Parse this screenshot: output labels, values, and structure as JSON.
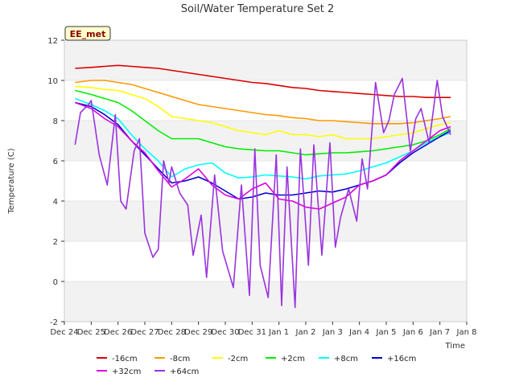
{
  "chart_data": {
    "type": "line",
    "title": "Soil/Water Temperature Set 2",
    "xlabel": "Time",
    "ylabel": "Temperature (C)",
    "station_badge": "EE_met",
    "ylim": [
      -2,
      12
    ],
    "yticks": [
      -2,
      0,
      2,
      4,
      6,
      8,
      10,
      12
    ],
    "xlim": [
      0,
      15
    ],
    "xticks": [
      {
        "x": 0,
        "label": "Dec 24"
      },
      {
        "x": 1,
        "label": "Dec 25"
      },
      {
        "x": 2,
        "label": "Dec 26"
      },
      {
        "x": 3,
        "label": "Dec 27"
      },
      {
        "x": 4,
        "label": "Dec 28"
      },
      {
        "x": 5,
        "label": "Dec 29"
      },
      {
        "x": 6,
        "label": "Dec 30"
      },
      {
        "x": 7,
        "label": "Dec 31"
      },
      {
        "x": 8,
        "label": "Jan 1"
      },
      {
        "x": 9,
        "label": "Jan 2"
      },
      {
        "x": 10,
        "label": "Jan 3"
      },
      {
        "x": 11,
        "label": "Jan 4"
      },
      {
        "x": 12,
        "label": "Jan 5"
      },
      {
        "x": 13,
        "label": "Jan 6"
      },
      {
        "x": 14,
        "label": "Jan 7"
      },
      {
        "x": 15,
        "label": "Jan 8"
      }
    ],
    "grid_bands": true,
    "legend_position": "bottom",
    "series": [
      {
        "name": "-16cm",
        "color": "#dd0000",
        "x": [
          0.4,
          1,
          1.5,
          2,
          2.5,
          3,
          3.5,
          4,
          4.5,
          5,
          5.5,
          6,
          6.5,
          7,
          7.5,
          8,
          8.5,
          9,
          9.5,
          10,
          10.5,
          11,
          11.5,
          12,
          12.5,
          13,
          13.5,
          14,
          14.4
        ],
        "y": [
          10.6,
          10.65,
          10.7,
          10.75,
          10.7,
          10.65,
          10.6,
          10.5,
          10.4,
          10.3,
          10.2,
          10.1,
          10.0,
          9.9,
          9.85,
          9.75,
          9.65,
          9.6,
          9.5,
          9.45,
          9.4,
          9.35,
          9.3,
          9.25,
          9.2,
          9.2,
          9.15,
          9.15,
          9.15
        ]
      },
      {
        "name": "-8cm",
        "color": "#ff9900",
        "x": [
          0.4,
          1,
          1.5,
          2,
          2.5,
          3,
          3.5,
          4,
          4.5,
          5,
          5.5,
          6,
          6.5,
          7,
          7.5,
          8,
          8.5,
          9,
          9.5,
          10,
          10.5,
          11,
          11.5,
          12,
          12.5,
          13,
          13.5,
          14,
          14.4
        ],
        "y": [
          9.9,
          10.0,
          10.0,
          9.9,
          9.8,
          9.6,
          9.4,
          9.2,
          9.0,
          8.8,
          8.7,
          8.6,
          8.5,
          8.4,
          8.3,
          8.25,
          8.15,
          8.1,
          8.0,
          8.0,
          7.95,
          7.9,
          7.85,
          7.85,
          7.85,
          7.9,
          8.0,
          8.1,
          8.2
        ]
      },
      {
        "name": "-2cm",
        "color": "#ffff00",
        "x": [
          0.4,
          1,
          1.5,
          2,
          2.5,
          3,
          3.5,
          4,
          4.5,
          5,
          5.5,
          6,
          6.5,
          7,
          7.5,
          8,
          8.5,
          9,
          9.5,
          10,
          10.5,
          11,
          11.5,
          12,
          12.5,
          13,
          13.5,
          14,
          14.4
        ],
        "y": [
          9.7,
          9.65,
          9.55,
          9.5,
          9.3,
          9.1,
          8.7,
          8.2,
          8.1,
          8.0,
          7.9,
          7.7,
          7.5,
          7.4,
          7.3,
          7.5,
          7.3,
          7.3,
          7.2,
          7.3,
          7.1,
          7.1,
          7.1,
          7.2,
          7.3,
          7.4,
          7.6,
          7.8,
          7.9
        ]
      },
      {
        "name": "+2cm",
        "color": "#00ee00",
        "x": [
          0.4,
          1,
          1.5,
          2,
          2.5,
          3,
          3.5,
          4,
          4.5,
          5,
          5.5,
          6,
          6.5,
          7,
          7.5,
          8,
          8.5,
          9,
          9.5,
          10,
          10.5,
          11,
          11.5,
          12,
          12.5,
          13,
          13.5,
          14,
          14.4
        ],
        "y": [
          9.5,
          9.3,
          9.1,
          8.9,
          8.5,
          8.0,
          7.5,
          7.1,
          7.1,
          7.1,
          6.9,
          6.7,
          6.6,
          6.55,
          6.5,
          6.5,
          6.4,
          6.3,
          6.35,
          6.4,
          6.4,
          6.45,
          6.5,
          6.6,
          6.7,
          6.8,
          7.0,
          7.3,
          7.6
        ]
      },
      {
        "name": "+8cm",
        "color": "#00ffff",
        "x": [
          0.4,
          1,
          1.5,
          2,
          2.5,
          3,
          3.5,
          4,
          4.5,
          5,
          5.5,
          6,
          6.5,
          7,
          7.5,
          8,
          8.5,
          9,
          9.5,
          10,
          10.5,
          11,
          11.5,
          12,
          12.5,
          13,
          13.5,
          14,
          14.4
        ],
        "y": [
          9.1,
          8.8,
          8.5,
          8.1,
          7.3,
          6.6,
          6.0,
          5.2,
          5.6,
          5.8,
          5.9,
          5.4,
          5.15,
          5.2,
          5.3,
          5.25,
          5.2,
          5.1,
          5.25,
          5.3,
          5.35,
          5.5,
          5.7,
          5.9,
          6.2,
          6.5,
          6.9,
          7.2,
          7.4
        ]
      },
      {
        "name": "+16cm",
        "color": "#0000cc",
        "x": [
          0.4,
          1,
          1.5,
          2,
          2.5,
          3,
          3.5,
          4,
          4.5,
          5,
          5.5,
          6,
          6.5,
          7,
          7.5,
          8,
          8.5,
          9,
          9.5,
          10,
          10.5,
          11,
          11.5,
          12,
          12.5,
          13,
          13.5,
          14,
          14.4
        ],
        "y": [
          8.9,
          8.7,
          8.3,
          7.8,
          7.0,
          6.3,
          5.6,
          4.9,
          5.0,
          5.2,
          4.9,
          4.5,
          4.1,
          4.2,
          4.4,
          4.3,
          4.3,
          4.4,
          4.5,
          4.45,
          4.6,
          4.8,
          5.0,
          5.3,
          5.9,
          6.4,
          6.8,
          7.2,
          7.5
        ]
      },
      {
        "name": "+32cm",
        "color": "#dd00dd",
        "x": [
          0.4,
          1,
          1.5,
          2,
          2.5,
          3,
          3.5,
          4,
          4.5,
          5,
          5.5,
          6,
          6.5,
          7,
          7.5,
          8,
          8.5,
          9,
          9.5,
          10,
          10.5,
          11,
          11.5,
          12,
          12.5,
          13,
          13.5,
          14,
          14.4
        ],
        "y": [
          8.9,
          8.6,
          8.1,
          7.7,
          7.0,
          6.4,
          5.5,
          4.7,
          5.1,
          5.6,
          4.8,
          4.3,
          4.1,
          4.6,
          4.9,
          4.1,
          4.0,
          3.7,
          3.6,
          3.9,
          4.2,
          4.8,
          5.0,
          5.3,
          6.0,
          6.5,
          7.0,
          7.5,
          7.7
        ]
      },
      {
        "name": "+64cm",
        "color": "#9933dd",
        "x": [
          0.4,
          0.6,
          0.9,
          1.0,
          1.3,
          1.6,
          1.9,
          2.1,
          2.3,
          2.6,
          2.8,
          3.0,
          3.3,
          3.5,
          3.7,
          3.9,
          4.0,
          4.3,
          4.6,
          4.8,
          5.1,
          5.3,
          5.6,
          5.9,
          6.3,
          6.6,
          6.9,
          7.1,
          7.3,
          7.6,
          7.9,
          8.1,
          8.3,
          8.6,
          8.8,
          9.1,
          9.3,
          9.6,
          9.9,
          10.1,
          10.3,
          10.6,
          10.9,
          11.1,
          11.3,
          11.6,
          11.9,
          12.1,
          12.3,
          12.6,
          12.9,
          13.1,
          13.3,
          13.6,
          13.9,
          14.1,
          14.4
        ],
        "y": [
          6.8,
          8.4,
          8.8,
          9.0,
          6.3,
          4.8,
          8.3,
          4.0,
          3.6,
          6.5,
          7.1,
          2.4,
          1.2,
          1.6,
          6.0,
          4.9,
          5.7,
          4.4,
          3.8,
          1.3,
          3.3,
          0.2,
          5.3,
          1.5,
          -0.3,
          4.8,
          -0.7,
          6.6,
          0.8,
          -0.8,
          6.3,
          -1.2,
          5.7,
          -1.3,
          6.6,
          0.8,
          6.8,
          1.3,
          6.9,
          1.7,
          3.2,
          4.6,
          3.0,
          6.1,
          4.6,
          9.9,
          7.4,
          8.0,
          9.3,
          10.1,
          6.5,
          8.1,
          8.6,
          6.9,
          10.0,
          8.2,
          7.3
        ]
      }
    ]
  }
}
